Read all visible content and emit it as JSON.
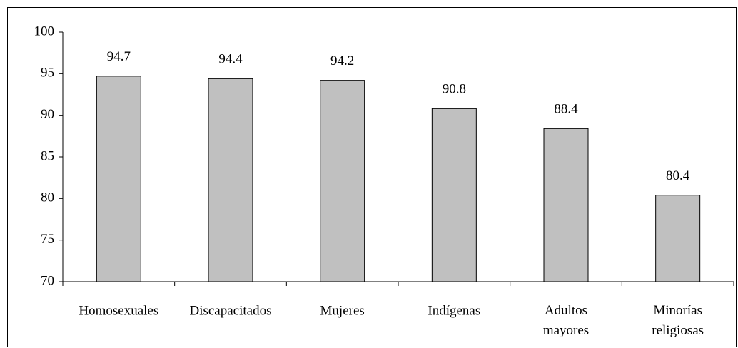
{
  "chart_data": {
    "type": "bar",
    "categories": [
      "Homosexuales",
      "Discapacitados",
      "Mujeres",
      "Indígenas",
      "Adultos mayores",
      "Minorías religiosas"
    ],
    "values": [
      94.7,
      94.4,
      94.2,
      90.8,
      88.4,
      80.4
    ],
    "color": "#c0c0c0",
    "ylim": [
      70,
      100
    ],
    "yticks": [
      70,
      75,
      80,
      85,
      90,
      95,
      100
    ],
    "grid": false
  }
}
